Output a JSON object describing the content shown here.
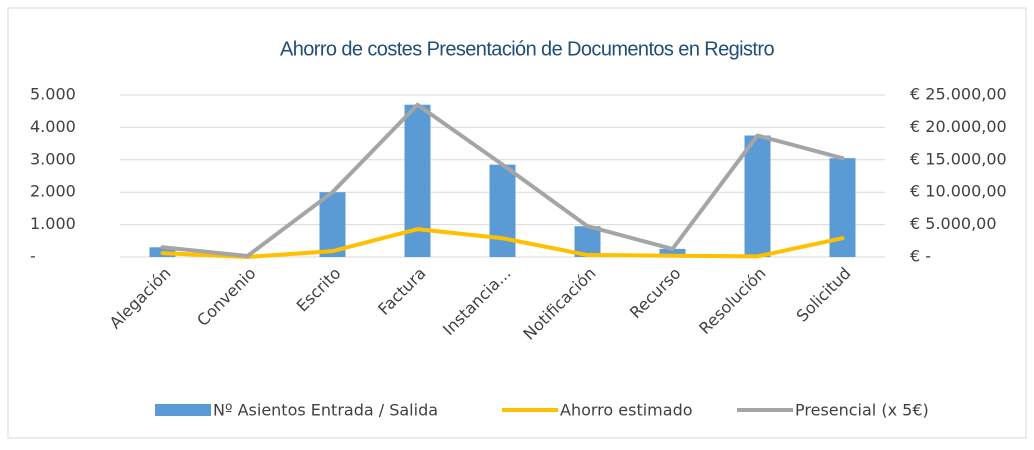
{
  "chart_data": {
    "type": "combo",
    "title": "Ahorro de costes Presentación de Documentos en Registro",
    "categories": [
      "Alegación",
      "Convenio",
      "Escrito",
      "Factura",
      "Instancia...",
      "Notificación",
      "Recurso",
      "Resolución",
      "Solicitud"
    ],
    "series": [
      {
        "name": "Nº Asientos Entrada / Salida",
        "kind": "bar",
        "color": "#5b9bd5",
        "values": [
          300,
          30,
          2000,
          4700,
          2850,
          950,
          250,
          3750,
          3050
        ]
      },
      {
        "name": "Ahorro estimado",
        "kind": "line",
        "axis": "y2",
        "color": "#ffc000",
        "values": [
          600,
          0,
          900,
          4300,
          2900,
          300,
          200,
          100,
          2900
        ]
      },
      {
        "name": "Presencial (x 5€)",
        "kind": "line",
        "axis": "y2",
        "color": "#a5a5a5",
        "values": [
          1500,
          150,
          10000,
          23500,
          14250,
          4750,
          1250,
          18750,
          15250
        ]
      }
    ],
    "ylim": [
      0,
      5000
    ],
    "yticks": [
      {
        "value": 0,
        "label": "-"
      },
      {
        "value": 1000,
        "label": "1.000"
      },
      {
        "value": 2000,
        "label": "2.000"
      },
      {
        "value": 3000,
        "label": "3.000"
      },
      {
        "value": 4000,
        "label": "4.000"
      },
      {
        "value": 5000,
        "label": "5.000"
      }
    ],
    "y2lim": [
      0,
      25000
    ],
    "y2ticks": [
      {
        "value": 0,
        "label": "€ -"
      },
      {
        "value": 5000,
        "label": "€ 5.000,00"
      },
      {
        "value": 10000,
        "label": "€ 10.000,00"
      },
      {
        "value": 15000,
        "label": "€ 15.000,00"
      },
      {
        "value": 20000,
        "label": "€ 20.000,00"
      },
      {
        "value": 25000,
        "label": "€ 25.000,00"
      }
    ],
    "legend": "bottom"
  }
}
